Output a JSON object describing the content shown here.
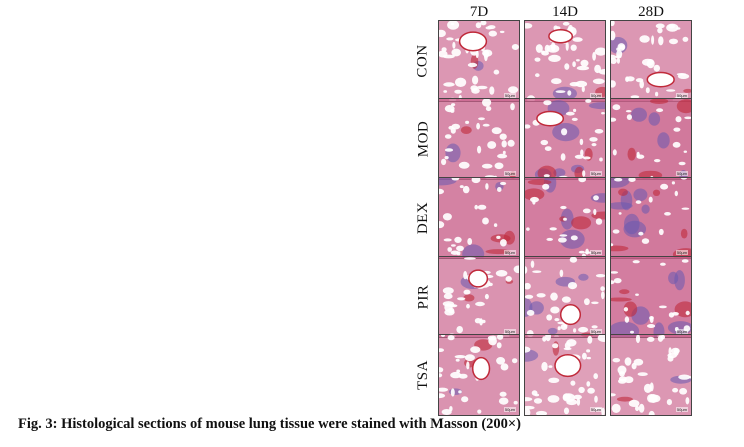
{
  "figure": {
    "columns": [
      "7D",
      "14D",
      "28D"
    ],
    "rows": [
      "CON",
      "MOD",
      "DEX",
      "PIR",
      "TSA"
    ],
    "scale_bar_text": "50μm",
    "caption": "Fig. 3: Histological sections of mouse lung tissue were stained with Masson (200×)"
  },
  "colors": {
    "tissue_pink": "#c9608a",
    "collagen_blue": "#6a5ab0",
    "dense_red": "#c02a3a",
    "background_white": "#ffffff"
  }
}
